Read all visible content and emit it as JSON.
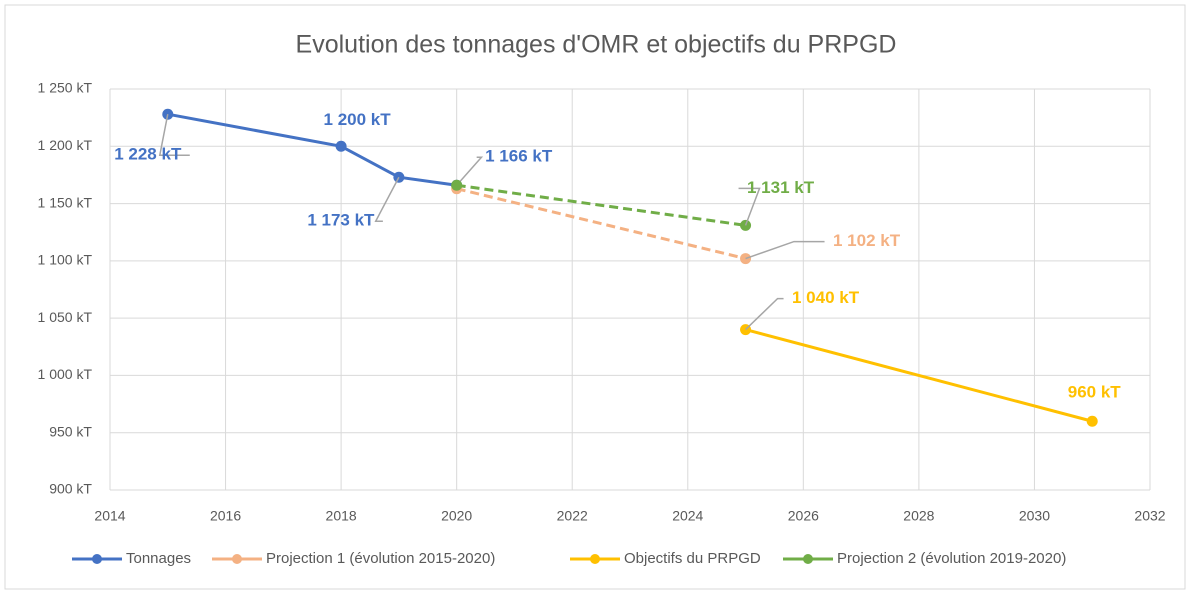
{
  "chart_data": {
    "type": "line",
    "title": "Evolution des tonnages d'OMR et objectifs du PRPGD",
    "xlim": [
      2014,
      2032
    ],
    "xticks": [
      2014,
      2016,
      2018,
      2020,
      2022,
      2024,
      2026,
      2028,
      2030,
      2032
    ],
    "ylim": [
      900,
      1250
    ],
    "yticks": [
      {
        "value": 900,
        "label": "900 kT"
      },
      {
        "value": 950,
        "label": "950 kT"
      },
      {
        "value": 1000,
        "label": "1 000 kT"
      },
      {
        "value": 1050,
        "label": "1 050 kT"
      },
      {
        "value": 1100,
        "label": "1 100 kT"
      },
      {
        "value": 1150,
        "label": "1 150 kT"
      },
      {
        "value": 1200,
        "label": "1 200 kT"
      },
      {
        "value": 1250,
        "label": "1 250 kT"
      }
    ],
    "grid": true,
    "legend": "bottom",
    "series": [
      {
        "name": "Tonnages",
        "color": "#4472c4",
        "dashed": false,
        "x": [
          2015,
          2018,
          2019,
          2020
        ],
        "values": [
          1228,
          1200,
          1173,
          1166
        ],
        "value_labels": [
          "1 228 kT",
          "1 200 kT",
          "1 173 kT",
          "1 166 kT"
        ]
      },
      {
        "name": "Projection 1 (évolution 2015-2020)",
        "color": "#f4b183",
        "dashed": true,
        "x": [
          2020,
          2025
        ],
        "values": [
          1163,
          1102
        ],
        "value_labels": [
          null,
          "1 102 kT"
        ]
      },
      {
        "name": "Objectifs du PRPGD",
        "color": "#ffc000",
        "dashed": false,
        "x": [
          2025,
          2031
        ],
        "values": [
          1040,
          960
        ],
        "value_labels": [
          "1 040 kT",
          "960 kT"
        ]
      },
      {
        "name": "Projection 2 (évolution 2019-2020)",
        "color": "#70ad47",
        "dashed": true,
        "x": [
          2020,
          2025
        ],
        "values": [
          1166,
          1131
        ],
        "value_labels": [
          null,
          "1 131 kT"
        ]
      }
    ]
  }
}
